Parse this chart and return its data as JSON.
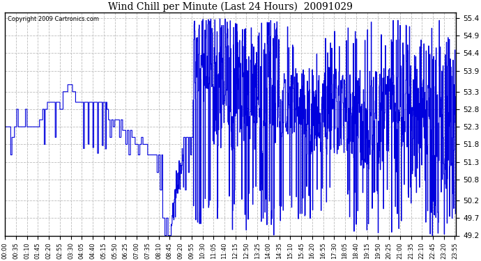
{
  "title": "Wind Chill per Minute (Last 24 Hours)  20091029",
  "copyright": "Copyright 2009 Cartronics.com",
  "line_color": "#0000dd",
  "background_color": "#ffffff",
  "grid_color": "#bbbbbb",
  "ylim": [
    49.2,
    55.55
  ],
  "yticks": [
    49.2,
    49.7,
    50.2,
    50.8,
    51.3,
    51.8,
    52.3,
    52.8,
    53.3,
    53.9,
    54.4,
    54.9,
    55.4
  ],
  "xtick_labels": [
    "00:00",
    "00:35",
    "01:10",
    "01:45",
    "02:20",
    "02:55",
    "03:30",
    "04:05",
    "04:40",
    "05:15",
    "05:50",
    "06:25",
    "07:00",
    "07:35",
    "08:10",
    "08:45",
    "09:20",
    "09:55",
    "10:30",
    "11:05",
    "11:40",
    "12:15",
    "12:50",
    "13:25",
    "14:00",
    "14:35",
    "15:10",
    "15:45",
    "16:20",
    "16:55",
    "17:30",
    "18:05",
    "18:40",
    "19:15",
    "19:50",
    "20:25",
    "21:00",
    "21:35",
    "22:10",
    "22:45",
    "23:20",
    "23:55"
  ],
  "total_minutes": 1440,
  "figsize": [
    6.9,
    3.75
  ],
  "dpi": 100
}
